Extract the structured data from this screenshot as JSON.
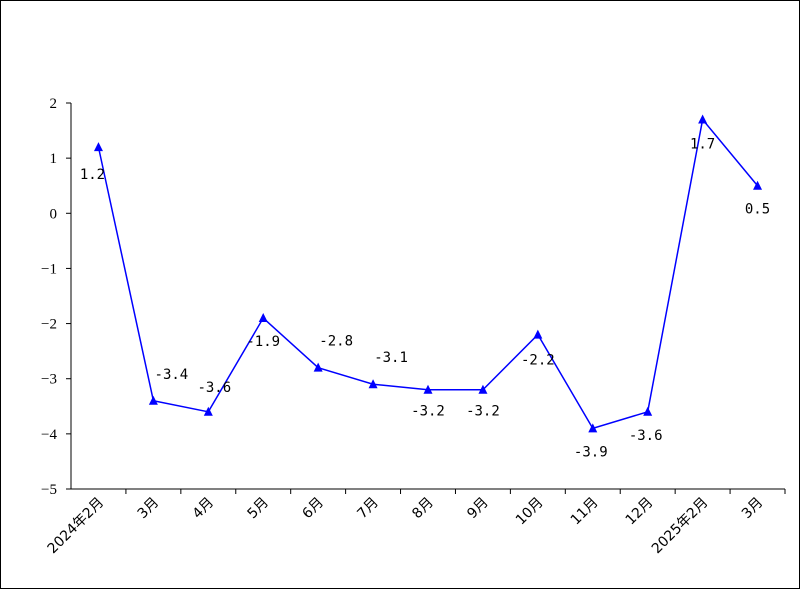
{
  "chart_data": {
    "type": "line",
    "title": "",
    "xlabel": "",
    "ylabel": "",
    "ylim": [
      -5,
      2
    ],
    "yticks": [
      2,
      1,
      0,
      -1,
      -2,
      -3,
      -4,
      -5
    ],
    "ytick_labels": [
      "2",
      "1",
      "0",
      "−1",
      "−2",
      "−3",
      "−4",
      "−5"
    ],
    "categories": [
      "2024年2月",
      "3月",
      "4月",
      "5月",
      "6月",
      "7月",
      "8月",
      "9月",
      "10月",
      "11月",
      "12月",
      "2025年2月",
      "3月"
    ],
    "series": [
      {
        "values": [
          1.2,
          -3.4,
          -3.6,
          -1.9,
          -2.8,
          -3.1,
          -3.2,
          -3.2,
          -2.2,
          -3.9,
          -3.6,
          1.7,
          0.5
        ],
        "labels": [
          "1.2",
          "-3.4",
          "-3.6",
          "-1.9",
          "-2.8",
          "-3.1",
          "-3.2",
          "-3.2",
          "-2.2",
          "-3.9",
          "-3.6",
          "1.7",
          "0.5"
        ],
        "color": "#0000ff",
        "marker": "triangle"
      }
    ],
    "grid": false,
    "legend": "none"
  }
}
